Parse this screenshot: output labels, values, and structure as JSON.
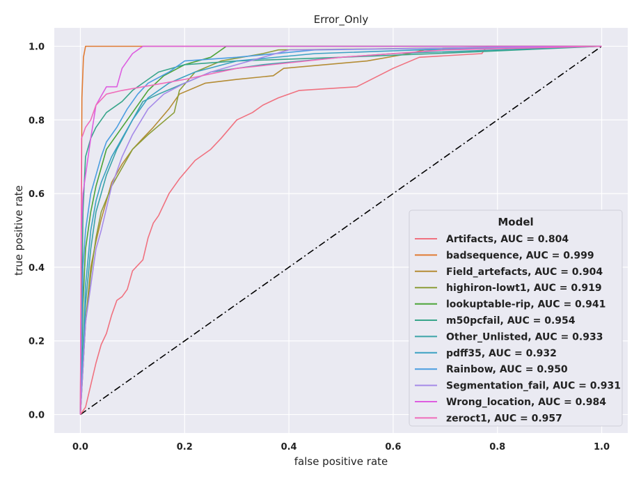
{
  "chart_data": {
    "type": "line",
    "title": "Error_Only",
    "xlabel": "false positive rate",
    "ylabel": "true positive rate",
    "xlim": [
      -0.05,
      1.05
    ],
    "ylim": [
      -0.05,
      1.05
    ],
    "xticks": [
      "0.0",
      "0.2",
      "0.4",
      "0.6",
      "0.8",
      "1.0"
    ],
    "yticks": [
      "0.0",
      "0.2",
      "0.4",
      "0.6",
      "0.8",
      "1.0"
    ],
    "grid": true,
    "background": "#eaeaf2",
    "legend": {
      "title": "Model",
      "placement": "lower-right"
    },
    "diagonal": {
      "x": [
        0,
        1
      ],
      "y": [
        0,
        1
      ],
      "color": "#000000",
      "style": "dash-dot"
    },
    "series": [
      {
        "name": "Artifacts, AUC = 0.804",
        "color": "#f0717f",
        "x": [
          0,
          0.01,
          0.02,
          0.03,
          0.04,
          0.05,
          0.06,
          0.07,
          0.08,
          0.09,
          0.1,
          0.12,
          0.13,
          0.14,
          0.15,
          0.16,
          0.17,
          0.19,
          0.22,
          0.25,
          0.27,
          0.3,
          0.33,
          0.35,
          0.38,
          0.42,
          0.53,
          0.6,
          0.65,
          0.77,
          0.78,
          1.0
        ],
        "y": [
          0,
          0.02,
          0.08,
          0.14,
          0.19,
          0.22,
          0.27,
          0.31,
          0.32,
          0.34,
          0.39,
          0.42,
          0.48,
          0.52,
          0.54,
          0.57,
          0.6,
          0.64,
          0.69,
          0.72,
          0.75,
          0.8,
          0.82,
          0.84,
          0.86,
          0.88,
          0.89,
          0.94,
          0.97,
          0.98,
          1.0,
          1.0
        ]
      },
      {
        "name": "badsequence, AUC = 0.999",
        "color": "#e17b32",
        "x": [
          0,
          0.003,
          0.006,
          0.01,
          1.0
        ],
        "y": [
          0,
          0.86,
          0.97,
          1.0,
          1.0
        ]
      },
      {
        "name": "Field_artefacts, AUC = 0.904",
        "color": "#b48c34",
        "x": [
          0,
          0.01,
          0.02,
          0.03,
          0.04,
          0.05,
          0.06,
          0.08,
          0.1,
          0.12,
          0.14,
          0.17,
          0.19,
          0.24,
          0.3,
          0.37,
          0.39,
          0.55,
          0.63,
          0.66,
          1.0
        ],
        "y": [
          0,
          0.25,
          0.4,
          0.47,
          0.53,
          0.58,
          0.63,
          0.68,
          0.72,
          0.75,
          0.78,
          0.83,
          0.87,
          0.9,
          0.91,
          0.92,
          0.94,
          0.96,
          0.98,
          0.99,
          1.0
        ]
      },
      {
        "name": "highiron-lowt1, AUC = 0.919",
        "color": "#8c9d38",
        "x": [
          0,
          0.01,
          0.02,
          0.03,
          0.04,
          0.06,
          0.08,
          0.1,
          0.13,
          0.18,
          0.19,
          0.22,
          0.27,
          0.35,
          0.38,
          1.0
        ],
        "y": [
          0,
          0.25,
          0.38,
          0.48,
          0.55,
          0.62,
          0.67,
          0.72,
          0.76,
          0.82,
          0.88,
          0.93,
          0.96,
          0.98,
          0.99,
          1.0
        ]
      },
      {
        "name": "lookuptable-rip, AUC = 0.941",
        "color": "#4aa336",
        "x": [
          0,
          0.005,
          0.01,
          0.02,
          0.03,
          0.04,
          0.05,
          0.07,
          0.09,
          0.11,
          0.13,
          0.16,
          0.2,
          0.25,
          0.28,
          1.0
        ],
        "y": [
          0,
          0.3,
          0.45,
          0.55,
          0.62,
          0.67,
          0.72,
          0.76,
          0.8,
          0.84,
          0.88,
          0.92,
          0.95,
          0.97,
          1.0,
          1.0
        ]
      },
      {
        "name": "m50pcfail, AUC = 0.954",
        "color": "#37a58a",
        "x": [
          0,
          0.005,
          0.01,
          0.02,
          0.03,
          0.05,
          0.08,
          0.1,
          0.12,
          0.15,
          0.2,
          0.3,
          0.5,
          0.68,
          1.0
        ],
        "y": [
          0,
          0.55,
          0.7,
          0.75,
          0.78,
          0.82,
          0.85,
          0.88,
          0.9,
          0.93,
          0.95,
          0.96,
          0.97,
          0.98,
          1.0
        ]
      },
      {
        "name": "Other_Unlisted, AUC = 0.933",
        "color": "#3aa3a7",
        "x": [
          0,
          0.01,
          0.02,
          0.03,
          0.05,
          0.07,
          0.1,
          0.12,
          0.15,
          0.2,
          0.25,
          0.35,
          0.5,
          0.6,
          1.0
        ],
        "y": [
          0,
          0.3,
          0.45,
          0.55,
          0.65,
          0.72,
          0.8,
          0.85,
          0.87,
          0.9,
          0.93,
          0.95,
          0.97,
          0.98,
          1.0
        ]
      },
      {
        "name": "pdff35, AUC = 0.932",
        "color": "#3ba1c2",
        "x": [
          0,
          0.01,
          0.02,
          0.03,
          0.04,
          0.06,
          0.08,
          0.1,
          0.13,
          0.17,
          0.22,
          0.3,
          0.45,
          0.65,
          1.0
        ],
        "y": [
          0,
          0.35,
          0.5,
          0.58,
          0.63,
          0.7,
          0.75,
          0.8,
          0.86,
          0.9,
          0.93,
          0.96,
          0.98,
          0.99,
          1.0
        ]
      },
      {
        "name": "Rainbow, AUC = 0.950",
        "color": "#4a9de0",
        "x": [
          0,
          0.005,
          0.01,
          0.02,
          0.03,
          0.04,
          0.05,
          0.07,
          0.09,
          0.11,
          0.13,
          0.17,
          0.2,
          0.3,
          0.45,
          1.0
        ],
        "y": [
          0,
          0.4,
          0.5,
          0.6,
          0.65,
          0.7,
          0.74,
          0.78,
          0.83,
          0.87,
          0.9,
          0.93,
          0.96,
          0.97,
          0.99,
          1.0
        ]
      },
      {
        "name": "Segmentation_fail, AUC = 0.931",
        "color": "#a58ae8",
        "x": [
          0,
          0.01,
          0.02,
          0.03,
          0.04,
          0.05,
          0.06,
          0.08,
          0.1,
          0.13,
          0.16,
          0.2,
          0.25,
          0.3,
          0.35,
          0.4,
          1.0
        ],
        "y": [
          0,
          0.25,
          0.35,
          0.45,
          0.5,
          0.56,
          0.62,
          0.7,
          0.76,
          0.83,
          0.87,
          0.9,
          0.93,
          0.95,
          0.97,
          0.99,
          1.0
        ]
      },
      {
        "name": "Wrong_location, AUC = 0.984",
        "color": "#dd5de0",
        "x": [
          0,
          0.002,
          0.005,
          0.01,
          0.02,
          0.03,
          0.05,
          0.07,
          0.08,
          0.09,
          0.1,
          0.11,
          0.12,
          1.0
        ],
        "y": [
          0,
          0.5,
          0.6,
          0.65,
          0.75,
          0.84,
          0.89,
          0.89,
          0.94,
          0.96,
          0.98,
          0.99,
          1.0,
          1.0
        ]
      },
      {
        "name": "zeroct1, AUC = 0.957",
        "color": "#ef6cba",
        "x": [
          0,
          0.002,
          0.005,
          0.01,
          0.02,
          0.03,
          0.05,
          0.08,
          0.12,
          0.2,
          0.3,
          0.5,
          0.7,
          1.0
        ],
        "y": [
          0,
          0.75,
          0.76,
          0.78,
          0.8,
          0.84,
          0.87,
          0.88,
          0.89,
          0.91,
          0.94,
          0.97,
          0.99,
          1.0
        ]
      }
    ]
  }
}
